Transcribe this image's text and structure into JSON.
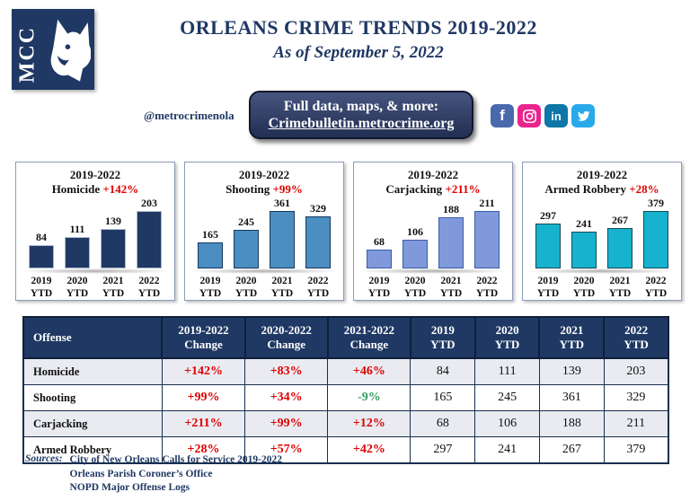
{
  "header": {
    "logo_text": "MCC",
    "title": "ORLEANS CRIME TRENDS 2019-2022",
    "subtitle": "As of September 5, 2022"
  },
  "banner": {
    "handle": "@metrocrimenola",
    "button_line1": "Full data, maps, & more:",
    "button_line2": "Crimebulletin.metrocrime.org",
    "social_icons": [
      "facebook",
      "instagram",
      "linkedin",
      "twitter"
    ]
  },
  "colors": {
    "navy": "#1F3864",
    "red": "#DE0000",
    "green": "#359A61",
    "row_alt": "#E9EBF1",
    "facebook": "#4A69AD",
    "instagram": "#E9258D",
    "linkedin": "#0E76A8",
    "twitter": "#28A9EA"
  },
  "chart_data": [
    {
      "type": "bar",
      "title": "2019-2022",
      "name": "Homicide",
      "change": "+142%",
      "categories": [
        "2019 YTD",
        "2020 YTD",
        "2021 YTD",
        "2022 YTD"
      ],
      "values": [
        84,
        111,
        139,
        203
      ],
      "bar_color": "#1F3864",
      "bar_border": "#AEB9CF",
      "legend_position": "none",
      "grid": false
    },
    {
      "type": "bar",
      "title": "2019-2022",
      "name": "Shooting",
      "change": "+99%",
      "categories": [
        "2019 YTD",
        "2020 YTD",
        "2021 YTD",
        "2022 YTD"
      ],
      "values": [
        165,
        245,
        361,
        329
      ],
      "bar_color": "#4A8EC2",
      "bar_border": "#17375E",
      "legend_position": "none",
      "grid": false
    },
    {
      "type": "bar",
      "title": "2019-2022",
      "name": "Carjacking",
      "change": "+211%",
      "categories": [
        "2019 YTD",
        "2020 YTD",
        "2021 YTD",
        "2022 YTD"
      ],
      "values": [
        68,
        106,
        188,
        211
      ],
      "bar_color": "#8099DB",
      "bar_border": "#3B5CA8",
      "legend_position": "none",
      "grid": false
    },
    {
      "type": "bar",
      "title": "2019-2022",
      "name": "Armed Robbery",
      "change": "+28%",
      "categories": [
        "2019 YTD",
        "2020 YTD",
        "2021 YTD",
        "2022 YTD"
      ],
      "values": [
        297,
        241,
        267,
        379
      ],
      "bar_color": "#17B2CE",
      "bar_border": "#134A56",
      "legend_position": "none",
      "grid": false
    }
  ],
  "table": {
    "columns": [
      [
        "Offense"
      ],
      [
        "2019-2022",
        "Change"
      ],
      [
        "2020-2022",
        "Change"
      ],
      [
        "2021-2022",
        "Change"
      ],
      [
        "2019",
        "YTD"
      ],
      [
        "2020",
        "YTD"
      ],
      [
        "2021",
        "YTD"
      ],
      [
        "2022",
        "YTD"
      ]
    ],
    "rows": [
      {
        "offense": "Homicide",
        "changes": [
          {
            "text": "+142%",
            "dir": "up"
          },
          {
            "text": "+83%",
            "dir": "up"
          },
          {
            "text": "+46%",
            "dir": "up"
          }
        ],
        "ytd": [
          84,
          111,
          139,
          203
        ]
      },
      {
        "offense": "Shooting",
        "changes": [
          {
            "text": "+99%",
            "dir": "up"
          },
          {
            "text": "+34%",
            "dir": "up"
          },
          {
            "text": "-9%",
            "dir": "down"
          }
        ],
        "ytd": [
          165,
          245,
          361,
          329
        ]
      },
      {
        "offense": "Carjacking",
        "changes": [
          {
            "text": "+211%",
            "dir": "up"
          },
          {
            "text": "+99%",
            "dir": "up"
          },
          {
            "text": "+12%",
            "dir": "up"
          }
        ],
        "ytd": [
          68,
          106,
          188,
          211
        ]
      },
      {
        "offense": "Armed Robbery",
        "changes": [
          {
            "text": "+28%",
            "dir": "up"
          },
          {
            "text": "+57%",
            "dir": "up"
          },
          {
            "text": "+42%",
            "dir": "up"
          }
        ],
        "ytd": [
          297,
          241,
          267,
          379
        ]
      }
    ]
  },
  "sources": {
    "label": "Sources:",
    "lines": [
      "City of New Orleans Calls for Service 2019-2022",
      "Orleans Parish Coroner’s Office",
      "NOPD Major Offense Logs"
    ]
  }
}
